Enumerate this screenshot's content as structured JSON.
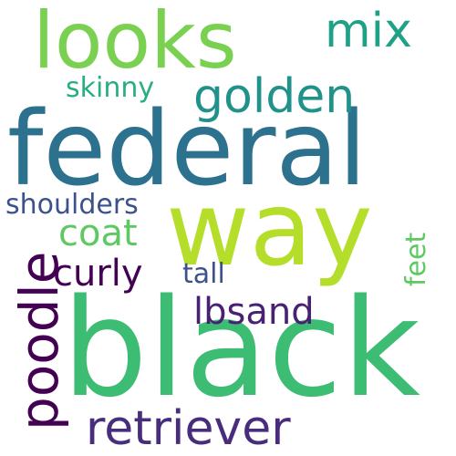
{
  "background": "#ffffff",
  "words": {
    "black": {
      "text": "black",
      "color": "#3dbc74"
    },
    "federal": {
      "text": "federal",
      "color": "#2c728e"
    },
    "way": {
      "text": "way",
      "color": "#b5de2b"
    },
    "looks": {
      "text": "looks",
      "color": "#7ad151"
    },
    "golden": {
      "text": "golden",
      "color": "#21918c"
    },
    "retriever": {
      "text": "retriever",
      "color": "#472d7b"
    },
    "poodle": {
      "text": "poodle",
      "color": "#440154"
    },
    "mix": {
      "text": "mix",
      "color": "#1fa187"
    },
    "curly": {
      "text": "curly",
      "color": "#440154"
    },
    "lbsand": {
      "text": "lbsand",
      "color": "#482173"
    },
    "coat": {
      "text": "coat",
      "color": "#5ec962"
    },
    "skinny": {
      "text": "skinny",
      "color": "#28ae80"
    },
    "tall": {
      "text": "tall",
      "color": "#3b528b"
    },
    "shoulders": {
      "text": "shoulders",
      "color": "#3b528b"
    },
    "feet": {
      "text": "feet",
      "color": "#5ec962"
    }
  }
}
